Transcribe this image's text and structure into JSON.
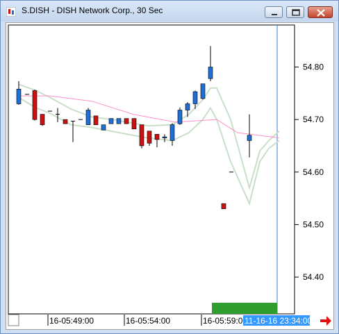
{
  "window": {
    "title": "S.DISH - DISH Network Corp., 30 Sec",
    "buttons": {
      "minimize": "minimize-icon",
      "maximize": "maximize-icon",
      "close": "close-icon"
    }
  },
  "colors": {
    "up_candle": "#1f6fd6",
    "down_candle": "#cc1111",
    "ma_fast": "#ff8fc8",
    "band": "#c9dfc9",
    "cursor_line": "#3a7fd5",
    "time_highlight": "#3399ff",
    "volume_bar": "#2f9e2f",
    "nav_arrow": "#e01010"
  },
  "chart_data": {
    "type": "candlestick",
    "ylim": [
      54.33,
      54.88
    ],
    "y_ticks": [
      "54.80",
      "54.70",
      "54.60",
      "54.50",
      "54.40"
    ],
    "y_tick_values": [
      54.8,
      54.7,
      54.6,
      54.5,
      54.4
    ],
    "x_labels": [
      "16-05:49:00",
      "16-05:54:00",
      "16-05:59:00"
    ],
    "cursor_label": "11-16-16 23:34:00",
    "candles": [
      {
        "x": 15,
        "o": 54.73,
        "h": 54.773,
        "l": 54.728,
        "c": 54.758
      },
      {
        "x": 27,
        "o": 54.748,
        "h": 54.748,
        "l": 54.748,
        "c": 54.748
      },
      {
        "x": 38,
        "o": 54.755,
        "h": 54.757,
        "l": 54.698,
        "c": 54.7
      },
      {
        "x": 49,
        "o": 54.71,
        "h": 54.71,
        "l": 54.688,
        "c": 54.69
      },
      {
        "x": 60,
        "o": 54.716,
        "h": 54.716,
        "l": 54.716,
        "c": 54.716
      },
      {
        "x": 71,
        "o": 54.71,
        "h": 54.722,
        "l": 54.695,
        "c": 54.71
      },
      {
        "x": 82,
        "o": 54.7,
        "h": 54.7,
        "l": 54.692,
        "c": 54.692
      },
      {
        "x": 93,
        "o": 54.697,
        "h": 54.697,
        "l": 54.657,
        "c": 54.697
      },
      {
        "x": 104,
        "o": 54.7,
        "h": 54.7,
        "l": 54.7,
        "c": 54.7
      },
      {
        "x": 115,
        "o": 54.69,
        "h": 54.722,
        "l": 54.69,
        "c": 54.718
      },
      {
        "x": 126,
        "o": 54.707,
        "h": 54.707,
        "l": 54.69,
        "c": 54.69
      },
      {
        "x": 137,
        "o": 54.68,
        "h": 54.69,
        "l": 54.68,
        "c": 54.69
      },
      {
        "x": 148,
        "o": 54.692,
        "h": 54.702,
        "l": 54.692,
        "c": 54.702
      },
      {
        "x": 159,
        "o": 54.692,
        "h": 54.702,
        "l": 54.692,
        "c": 54.702
      },
      {
        "x": 170,
        "o": 54.702,
        "h": 54.702,
        "l": 54.692,
        "c": 54.692
      },
      {
        "x": 181,
        "o": 54.702,
        "h": 54.702,
        "l": 54.682,
        "c": 54.682
      },
      {
        "x": 192,
        "o": 54.69,
        "h": 54.69,
        "l": 54.645,
        "c": 54.65
      },
      {
        "x": 203,
        "o": 54.678,
        "h": 54.678,
        "l": 54.65,
        "c": 54.655
      },
      {
        "x": 214,
        "o": 54.672,
        "h": 54.672,
        "l": 54.647,
        "c": 54.662
      },
      {
        "x": 225,
        "o": 54.665,
        "h": 54.672,
        "l": 54.657,
        "c": 54.667
      },
      {
        "x": 236,
        "o": 54.66,
        "h": 54.693,
        "l": 54.65,
        "c": 54.69
      },
      {
        "x": 247,
        "o": 54.692,
        "h": 54.723,
        "l": 54.69,
        "c": 54.718
      },
      {
        "x": 258,
        "o": 54.718,
        "h": 54.733,
        "l": 54.705,
        "c": 54.73
      },
      {
        "x": 269,
        "o": 54.73,
        "h": 54.755,
        "l": 54.72,
        "c": 54.753
      },
      {
        "x": 280,
        "o": 54.74,
        "h": 54.768,
        "l": 54.738,
        "c": 54.768
      },
      {
        "x": 291,
        "o": 54.778,
        "h": 54.84,
        "l": 54.773,
        "c": 54.8
      },
      {
        "x": 321,
        "o": 54.6,
        "h": 54.6,
        "l": 54.6,
        "c": 54.6
      },
      {
        "x": 310,
        "o": 54.54,
        "h": 54.54,
        "l": 54.53,
        "c": 54.53
      },
      {
        "x": 347,
        "o": 54.66,
        "h": 54.71,
        "l": 54.628,
        "c": 54.67
      },
      {
        "x": 303,
        "o": 54.345,
        "h": 54.345,
        "l": 54.345,
        "c": 54.345
      }
    ],
    "ma_fast": [
      [
        15,
        54.745
      ],
      [
        60,
        54.745
      ],
      [
        120,
        54.735
      ],
      [
        180,
        54.71
      ],
      [
        240,
        54.695
      ],
      [
        300,
        54.7
      ],
      [
        330,
        54.675
      ],
      [
        360,
        54.67
      ],
      [
        390,
        54.665
      ]
    ],
    "band_upper": [
      [
        15,
        54.767
      ],
      [
        40,
        54.755
      ],
      [
        60,
        54.742
      ],
      [
        90,
        54.72
      ],
      [
        120,
        54.705
      ],
      [
        160,
        54.698
      ],
      [
        200,
        54.688
      ],
      [
        236,
        54.69
      ],
      [
        260,
        54.71
      ],
      [
        280,
        54.738
      ],
      [
        291,
        54.76
      ],
      [
        300,
        54.76
      ],
      [
        320,
        54.7
      ],
      [
        347,
        54.57
      ],
      [
        362,
        54.64
      ],
      [
        375,
        54.66
      ],
      [
        390,
        54.678
      ]
    ],
    "band_lower": [
      [
        15,
        54.742
      ],
      [
        40,
        54.722
      ],
      [
        60,
        54.712
      ],
      [
        90,
        54.69
      ],
      [
        120,
        54.685
      ],
      [
        160,
        54.675
      ],
      [
        200,
        54.665
      ],
      [
        236,
        54.66
      ],
      [
        260,
        54.675
      ],
      [
        280,
        54.7
      ],
      [
        291,
        54.722
      ],
      [
        300,
        54.7
      ],
      [
        320,
        54.62
      ],
      [
        347,
        54.54
      ],
      [
        362,
        54.62
      ],
      [
        375,
        54.645
      ],
      [
        390,
        54.66
      ]
    ]
  }
}
